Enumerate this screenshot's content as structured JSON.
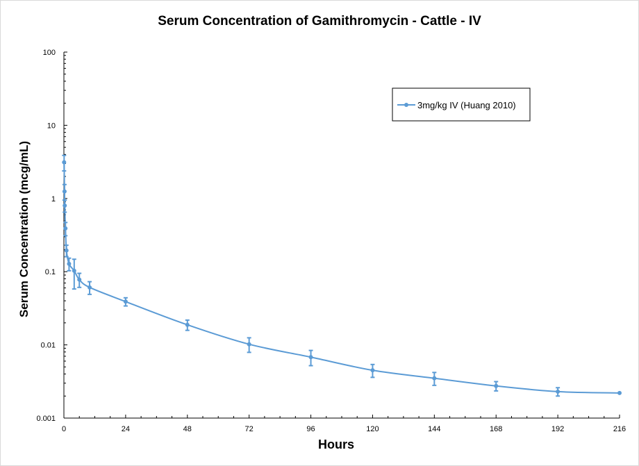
{
  "chart_data": {
    "type": "line",
    "title": "Serum Concentration of Gamithromycin - Cattle - IV",
    "xlabel": "Hours",
    "ylabel": "Serum Concentration (mcg/mL)",
    "xlim": [
      0,
      216
    ],
    "ylim": [
      0.001,
      100
    ],
    "yscale": "log",
    "x_ticks": [
      0,
      24,
      48,
      72,
      96,
      120,
      144,
      168,
      192,
      216
    ],
    "y_ticks": [
      0.001,
      0.01,
      0.1,
      1,
      10,
      100
    ],
    "y_tick_labels": [
      "0.001",
      "0.01",
      "0.1",
      "1",
      "10",
      "100"
    ],
    "grid": false,
    "legend_position": "top-right",
    "series": [
      {
        "name": "3mg/kg IV (Huang 2010)",
        "color": "#5b9bd5",
        "x": [
          0.083,
          0.25,
          0.33,
          0.6,
          1,
          2,
          4,
          6,
          10,
          24,
          48,
          72,
          96,
          120,
          144,
          168,
          192,
          216
        ],
        "y": [
          3.13,
          1.25,
          0.8,
          0.39,
          0.195,
          0.128,
          0.103,
          0.078,
          0.061,
          0.039,
          0.0188,
          0.0102,
          0.0068,
          0.0045,
          0.0035,
          0.00275,
          0.0023,
          0.0022
        ],
        "error": [
          0.75,
          0.3,
          0.15,
          0.08,
          0.035,
          0.025,
          0.045,
          0.017,
          0.012,
          0.005,
          0.003,
          0.0023,
          0.0016,
          0.0009,
          0.0007,
          0.0004,
          0.0003,
          0
        ]
      }
    ]
  }
}
